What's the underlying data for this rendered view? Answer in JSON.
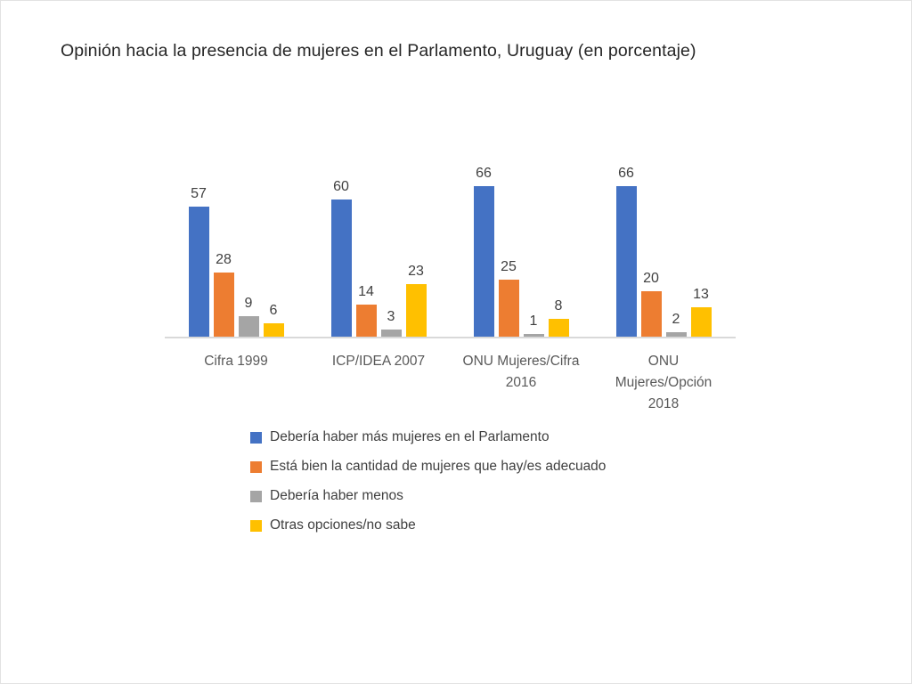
{
  "title": "Opinión hacia la presencia de mujeres en el Parlamento, Uruguay (en porcentaje)",
  "chart_data": {
    "type": "bar",
    "title": "Opinión hacia la presencia de mujeres en el Parlamento, Uruguay (en porcentaje)",
    "categories": [
      "Cifra 1999",
      "ICP/IDEA 2007",
      "ONU Mujeres/Cifra 2016",
      "ONU Mujeres/Opción 2018"
    ],
    "series": [
      {
        "name": "Debería haber más mujeres en el Parlamento",
        "color": "#4472C4",
        "values": [
          57,
          60,
          66,
          66
        ]
      },
      {
        "name": "Está bien la cantidad de mujeres que hay/es adecuado",
        "color": "#ED7D31",
        "values": [
          28,
          14,
          25,
          20
        ]
      },
      {
        "name": "Debería haber menos",
        "color": "#A5A5A5",
        "values": [
          9,
          3,
          1,
          2
        ]
      },
      {
        "name": "Otras opciones/no sabe",
        "color": "#FFC000",
        "values": [
          6,
          23,
          8,
          13
        ]
      }
    ],
    "xlabel": "",
    "ylabel": "",
    "ylim": [
      0,
      70
    ],
    "grid": false,
    "data_labels": true,
    "legend_position": "bottom-left",
    "axis_line_color": "#d9d9d9",
    "value_label_color": "#404040",
    "category_label_color": "#595959"
  }
}
